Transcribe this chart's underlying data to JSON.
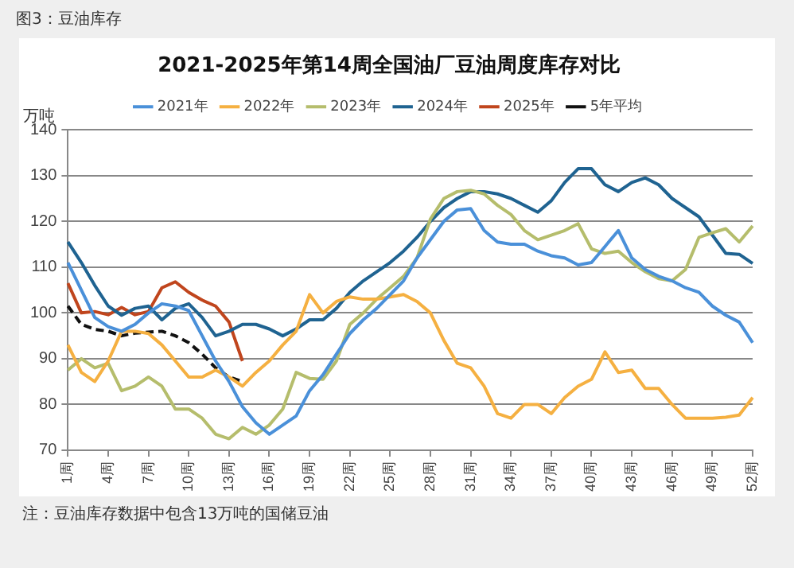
{
  "chart_data": {
    "type": "line",
    "title": "2021-2025年第14周全国油厂豆油周度库存对比",
    "ylabel": "万吨",
    "annotations": [
      "图3：豆油库存",
      "注：豆油库存数据中包含13万吨的国储豆油"
    ],
    "categories": [
      "1周",
      null,
      null,
      "4周",
      null,
      null,
      "7周",
      null,
      null,
      "10周",
      null,
      null,
      "13周",
      null,
      null,
      "16周",
      null,
      null,
      "19周",
      null,
      null,
      "22周",
      null,
      null,
      "25周",
      null,
      null,
      "28周",
      null,
      null,
      "31周",
      null,
      null,
      "34周",
      null,
      null,
      "37周",
      null,
      null,
      "40周",
      null,
      null,
      "43周",
      null,
      null,
      "46周",
      null,
      null,
      "49周",
      null,
      null,
      "52周"
    ],
    "ylim": [
      70,
      140
    ],
    "yticks": [
      70,
      80,
      90,
      100,
      110,
      120,
      130,
      140
    ],
    "grid": "y",
    "legend": "top",
    "marker": "none",
    "series": [
      {
        "name": "2021年",
        "color": "#4a90d9",
        "values": [
          111,
          105,
          99,
          97,
          96,
          97.5,
          100,
          102,
          101.5,
          100.5,
          95,
          89.5,
          85,
          79.5,
          76,
          73.5,
          75.5,
          77.5,
          83,
          86.5,
          91,
          95.5,
          98.5,
          101,
          104,
          107,
          112,
          116,
          120,
          122.5,
          122.8,
          118,
          115.5,
          115,
          115,
          113.5,
          112.5,
          112,
          110.5,
          111,
          114.5,
          118,
          112,
          109.5,
          108,
          107,
          105.5,
          104.5,
          101.5,
          99.5,
          98,
          93.5
        ]
      },
      {
        "name": "2022年",
        "color": "#f5b041",
        "values": [
          93,
          87,
          85,
          89.5,
          96,
          96,
          95.5,
          93,
          89.5,
          86,
          86,
          87.5,
          86,
          84,
          87,
          89.5,
          93,
          96,
          104,
          100,
          102.5,
          103.5,
          103,
          103,
          103.5,
          104,
          102.5,
          100,
          94,
          89,
          88,
          84,
          78,
          77,
          80,
          80,
          78,
          81.5,
          84,
          85.5,
          91.5,
          87,
          87.5,
          83.5,
          83.5,
          80,
          77,
          77,
          77,
          77.2,
          77.7,
          81.5
        ]
      },
      {
        "name": "2023年",
        "color": "#b5bd6c",
        "values": [
          87.5,
          90,
          88,
          89,
          83,
          84,
          86,
          84,
          79,
          79,
          77,
          73.5,
          72.5,
          75,
          73.5,
          75.5,
          79,
          87,
          85.7,
          85.5,
          89.5,
          97.5,
          100,
          103,
          105.5,
          108,
          112,
          120.5,
          125,
          126.5,
          126.8,
          126,
          123.5,
          121.5,
          118,
          116,
          117,
          118,
          119.5,
          114,
          113,
          113.5,
          111,
          109,
          107.5,
          107,
          109.5,
          116.5,
          117.5,
          118.4,
          115.5,
          119
        ]
      },
      {
        "name": "2024年",
        "color": "#1f6391",
        "values": [
          115.5,
          111,
          106,
          101.5,
          99.5,
          101,
          101.5,
          98.5,
          101,
          102,
          99,
          95,
          96,
          97.5,
          97.5,
          96.5,
          95,
          96.5,
          98.5,
          98.5,
          101,
          104.5,
          107,
          109,
          111,
          113.5,
          116.5,
          120,
          123,
          125,
          126.5,
          126.5,
          126,
          125,
          123.5,
          122,
          124.5,
          128.5,
          131.5,
          131.5,
          128,
          126.5,
          128.5,
          129.5,
          128,
          125,
          123,
          121,
          117,
          113,
          112.8,
          110.8
        ]
      },
      {
        "name": "2025年",
        "color": "#c0451d",
        "values": [
          106.5,
          100,
          100.3,
          99.6,
          101.2,
          99.6,
          100.3,
          105.5,
          106.8,
          104.5,
          102.8,
          101.5,
          98,
          89.5,
          null,
          null,
          null,
          null,
          null,
          null,
          null,
          null,
          null,
          null,
          null,
          null,
          null,
          null,
          null,
          null,
          null,
          null,
          null,
          null,
          null,
          null,
          null,
          null,
          null,
          null,
          null,
          null,
          null,
          null,
          null,
          null,
          null,
          null,
          null,
          null,
          null,
          null
        ]
      },
      {
        "name": "5年平均",
        "color": "#111111",
        "line_style": "dashed",
        "values": [
          101.5,
          97.5,
          96.4,
          96,
          95,
          95.6,
          95.8,
          96,
          95,
          93.5,
          91,
          88,
          86,
          85,
          null,
          null,
          null,
          null,
          null,
          null,
          null,
          null,
          null,
          null,
          null,
          null,
          null,
          null,
          null,
          null,
          null,
          null,
          null,
          null,
          null,
          null,
          null,
          null,
          null,
          null,
          null,
          null,
          null,
          null,
          null,
          null,
          null,
          null,
          null,
          null,
          null,
          null
        ]
      }
    ]
  }
}
